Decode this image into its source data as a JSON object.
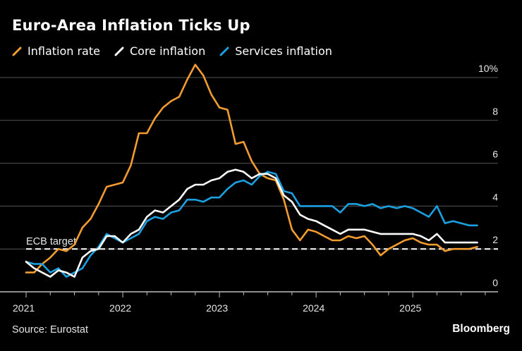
{
  "header": {
    "title": "Euro-Area Inflation Ticks Up"
  },
  "footer": {
    "source": "Source: Eurostat",
    "brand": "Bloomberg"
  },
  "chart_data": {
    "type": "line",
    "title": "Euro-Area Inflation Ticks Up",
    "xlabel": "",
    "ylabel": "",
    "y_unit": "%",
    "ylim": [
      0,
      10
    ],
    "y_ticks": [
      0,
      2,
      4,
      6,
      8,
      10
    ],
    "y_tick_labels": [
      "0",
      "2",
      "4",
      "6",
      "8",
      "10%"
    ],
    "x_start": "2021-01",
    "x_frequency": "monthly",
    "x_ticks": [
      "2021",
      "2022",
      "2023",
      "2024",
      "2025"
    ],
    "grid": true,
    "axis_side": "right",
    "legend_position": "top-left",
    "annotations": [
      {
        "label": "ECB target",
        "y": 2,
        "style": "dashed",
        "color": "#ffffff"
      }
    ],
    "series": [
      {
        "name": "Inflation rate",
        "color": "#f39c2f",
        "values": [
          0.9,
          0.9,
          1.3,
          1.6,
          2.0,
          1.9,
          2.2,
          3.0,
          3.4,
          4.1,
          4.9,
          5.0,
          5.1,
          5.9,
          7.4,
          7.4,
          8.1,
          8.6,
          8.9,
          9.1,
          9.9,
          10.6,
          10.1,
          9.2,
          8.6,
          8.5,
          6.9,
          7.0,
          6.1,
          5.5,
          5.3,
          5.2,
          4.3,
          2.9,
          2.4,
          2.9,
          2.8,
          2.6,
          2.4,
          2.4,
          2.6,
          2.5,
          2.6,
          2.2,
          1.7,
          2.0,
          2.2,
          2.4,
          2.5,
          2.3,
          2.2,
          2.2,
          1.9,
          2.0,
          2.0,
          2.0,
          2.1
        ]
      },
      {
        "name": "Core inflation",
        "color": "#ffffff",
        "values": [
          1.4,
          1.1,
          0.9,
          0.7,
          1.0,
          0.9,
          0.7,
          1.6,
          1.9,
          2.0,
          2.6,
          2.6,
          2.3,
          2.7,
          2.9,
          3.5,
          3.8,
          3.7,
          4.0,
          4.3,
          4.8,
          5.0,
          5.0,
          5.2,
          5.3,
          5.6,
          5.7,
          5.6,
          5.3,
          5.5,
          5.5,
          5.3,
          4.5,
          4.2,
          3.6,
          3.4,
          3.3,
          3.1,
          2.9,
          2.7,
          2.9,
          2.9,
          2.9,
          2.8,
          2.7,
          2.7,
          2.7,
          2.7,
          2.7,
          2.6,
          2.4,
          2.7,
          2.3,
          2.3,
          2.3,
          2.3,
          2.3
        ]
      },
      {
        "name": "Services inflation",
        "color": "#1ba1e2",
        "values": [
          1.4,
          1.3,
          1.3,
          0.9,
          1.1,
          0.7,
          0.9,
          1.1,
          1.7,
          2.1,
          2.7,
          2.5,
          2.3,
          2.5,
          2.7,
          3.3,
          3.5,
          3.4,
          3.7,
          3.8,
          4.3,
          4.3,
          4.2,
          4.4,
          4.4,
          4.8,
          5.1,
          5.2,
          5.0,
          5.4,
          5.6,
          5.5,
          4.7,
          4.6,
          4.0,
          4.0,
          4.0,
          4.0,
          4.0,
          3.7,
          4.1,
          4.1,
          4.0,
          4.1,
          3.9,
          4.0,
          3.9,
          4.0,
          3.9,
          3.7,
          3.5,
          4.0,
          3.2,
          3.3,
          3.2,
          3.1,
          3.1
        ]
      }
    ]
  }
}
